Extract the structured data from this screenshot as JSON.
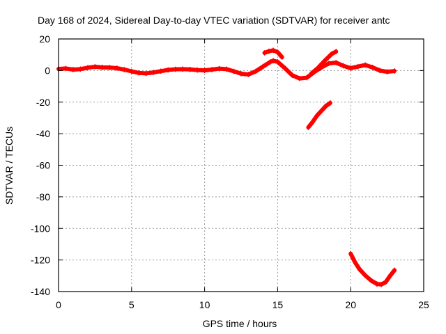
{
  "colors": {
    "background": "#ffffff",
    "axis": "#000000",
    "grid": "#9a9a9a",
    "series": "#ff0000"
  },
  "chart_data": {
    "type": "line",
    "title": "Day 168 of 2024, Sidereal Day-to-day VTEC variation (SDTVAR) for receiver antc",
    "xlabel": "GPS time / hours",
    "ylabel": "SDTVAR / TECUs",
    "xlim": [
      0,
      25
    ],
    "ylim": [
      -140,
      20
    ],
    "xticks": [
      0,
      5,
      10,
      15,
      20,
      25
    ],
    "yticks": [
      -140,
      -120,
      -100,
      -80,
      -60,
      -40,
      -20,
      0,
      20
    ],
    "grid": true,
    "series": [
      {
        "name": "SDTVAR main trace",
        "points": [
          [
            0.0,
            1.0
          ],
          [
            0.5,
            1.3
          ],
          [
            1.0,
            0.6
          ],
          [
            1.5,
            0.9
          ],
          [
            2.0,
            1.8
          ],
          [
            2.5,
            2.4
          ],
          [
            3.0,
            2.0
          ],
          [
            3.5,
            1.9
          ],
          [
            4.0,
            1.5
          ],
          [
            4.5,
            0.6
          ],
          [
            5.0,
            -0.5
          ],
          [
            5.5,
            -1.5
          ],
          [
            6.0,
            -1.8
          ],
          [
            6.5,
            -1.2
          ],
          [
            7.0,
            -0.4
          ],
          [
            7.5,
            0.4
          ],
          [
            8.0,
            0.8
          ],
          [
            8.5,
            0.9
          ],
          [
            9.0,
            0.7
          ],
          [
            9.5,
            0.3
          ],
          [
            10.0,
            0.1
          ],
          [
            10.5,
            0.6
          ],
          [
            11.0,
            1.2
          ],
          [
            11.5,
            0.9
          ],
          [
            12.0,
            -0.5
          ],
          [
            12.5,
            -2.0
          ],
          [
            13.0,
            -2.5
          ],
          [
            13.5,
            -0.5
          ],
          [
            14.0,
            2.5
          ],
          [
            14.5,
            5.5
          ],
          [
            14.7,
            6.2
          ],
          [
            15.0,
            5.5
          ],
          [
            15.5,
            1.5
          ],
          [
            16.0,
            -3.0
          ],
          [
            16.5,
            -5.0
          ],
          [
            17.0,
            -4.5
          ],
          [
            17.5,
            -1.0
          ],
          [
            18.0,
            2.0
          ],
          [
            18.5,
            4.5
          ],
          [
            19.0,
            5.0
          ],
          [
            19.5,
            3.0
          ],
          [
            20.0,
            1.5
          ],
          [
            20.5,
            2.5
          ],
          [
            21.0,
            3.5
          ],
          [
            21.5,
            2.0
          ],
          [
            22.0,
            0.0
          ],
          [
            22.5,
            -0.8
          ],
          [
            23.0,
            -0.3
          ]
        ]
      },
      {
        "name": "Secondary fan branch",
        "points": [
          [
            17.3,
            -2.0
          ],
          [
            17.8,
            2.0
          ],
          [
            18.2,
            6.0
          ],
          [
            18.7,
            10.5
          ],
          [
            19.0,
            12.0
          ]
        ]
      },
      {
        "name": "Short branch near 15h",
        "points": [
          [
            14.1,
            11.2
          ],
          [
            14.4,
            12.2
          ],
          [
            14.7,
            12.8
          ],
          [
            15.0,
            11.6
          ],
          [
            15.3,
            8.5
          ]
        ]
      },
      {
        "name": "Negative segment near 17-18.5h",
        "points": [
          [
            17.1,
            -36.0
          ],
          [
            17.4,
            -32.5
          ],
          [
            17.7,
            -28.5
          ],
          [
            18.0,
            -25.5
          ],
          [
            18.3,
            -22.5
          ],
          [
            18.6,
            -20.5
          ]
        ]
      },
      {
        "name": "Deep negative segment near 20-23h",
        "points": [
          [
            20.0,
            -116.0
          ],
          [
            20.3,
            -121.5
          ],
          [
            20.6,
            -125.8
          ],
          [
            21.0,
            -129.8
          ],
          [
            21.4,
            -133.0
          ],
          [
            21.8,
            -135.2
          ],
          [
            22.1,
            -135.5
          ],
          [
            22.4,
            -134.0
          ],
          [
            22.7,
            -130.0
          ],
          [
            23.0,
            -126.5
          ]
        ]
      }
    ]
  }
}
